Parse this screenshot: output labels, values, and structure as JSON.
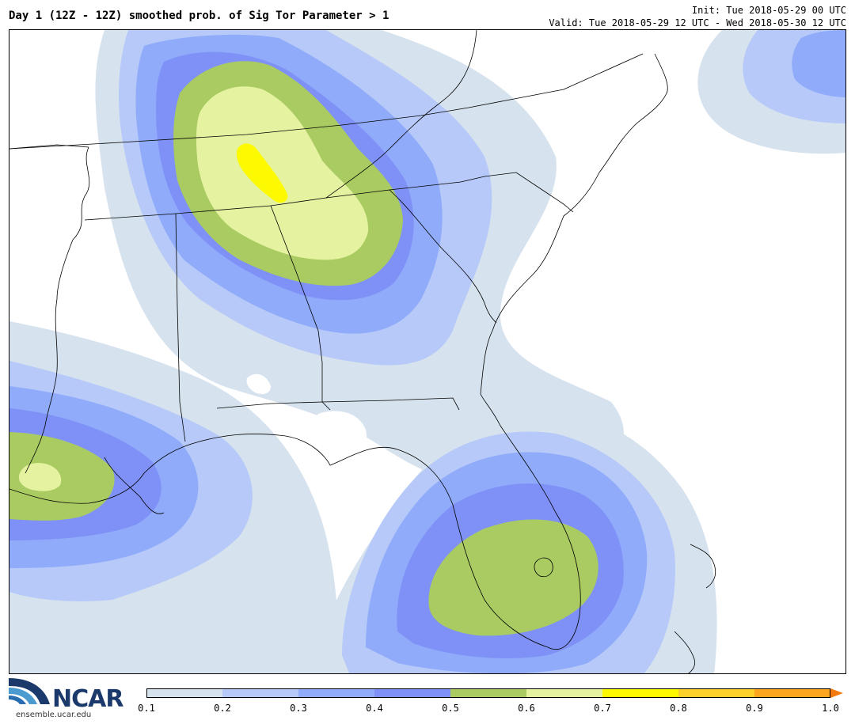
{
  "header": {
    "title": "Day 1 (12Z - 12Z) smoothed prob. of Sig Tor Parameter > 1",
    "init": "Init: Tue 2018-05-29 00 UTC",
    "valid": "Valid: Tue 2018-05-29 12 UTC - Wed 2018-05-30 12 UTC"
  },
  "logo": {
    "name": "NCAR",
    "url": "ensemble.ucar.edu"
  },
  "colorbar": {
    "ticks": [
      "0.1",
      "0.2",
      "0.3",
      "0.4",
      "0.5",
      "0.6",
      "0.7",
      "0.8",
      "0.9",
      "1.0"
    ],
    "colors": [
      "#d6e2ee",
      "#b6c9f8",
      "#8fabfa",
      "#7f91f6",
      "#a9cb62",
      "#e5f3a0",
      "#fcf900",
      "#fdd12a",
      "#fca61f",
      "#f47b10"
    ]
  },
  "map": {
    "colors": {
      "p10": "#d6e2ee",
      "p20": "#b6c9f8",
      "p30": "#8fabfa",
      "p40": "#7f91f6",
      "p50": "#a9cb62",
      "p60": "#e5f3a0",
      "p70": "#fcf900",
      "line": "#000000"
    }
  }
}
